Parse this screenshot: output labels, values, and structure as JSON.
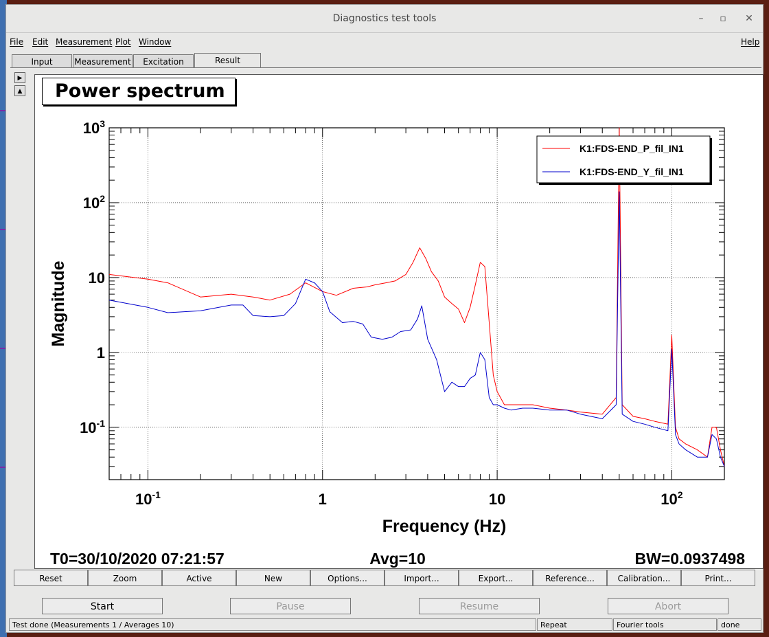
{
  "window": {
    "title": "Diagnostics test tools"
  },
  "menu": [
    {
      "label": "File"
    },
    {
      "label": "Edit"
    },
    {
      "label": "Measurement"
    },
    {
      "label": "Plot"
    },
    {
      "label": "Window"
    },
    {
      "label": "Help"
    }
  ],
  "tabs": [
    {
      "label": "Input"
    },
    {
      "label": "Measurement"
    },
    {
      "label": "Excitation"
    },
    {
      "label": "Result",
      "active": true
    }
  ],
  "plot": {
    "title": "Power spectrum",
    "info": {
      "t0": "T0=30/10/2020 07:21:57",
      "avg": "Avg=10",
      "bw": "BW=0.0937498"
    }
  },
  "chart_data": {
    "type": "line",
    "xlabel": "Frequency (Hz)",
    "ylabel": "Magnitude",
    "x_scale": "log",
    "y_scale": "log",
    "xlim": [
      0.06,
      200
    ],
    "ylim": [
      0.02,
      1000
    ],
    "x_ticks": [
      {
        "value": 0.1,
        "base": "10",
        "exp": "-1"
      },
      {
        "value": 1,
        "label": "1"
      },
      {
        "value": 10,
        "label": "10"
      },
      {
        "value": 100,
        "base": "10",
        "exp": "2"
      }
    ],
    "y_ticks": [
      {
        "value": 1000,
        "base": "10",
        "exp": "3"
      },
      {
        "value": 100,
        "base": "10",
        "exp": "2"
      },
      {
        "value": 10,
        "label": "10"
      },
      {
        "value": 1,
        "label": "1"
      },
      {
        "value": 0.1,
        "base": "10",
        "exp": "-1"
      }
    ],
    "grid": true,
    "legend_position": "top-right",
    "series": [
      {
        "name": "K1:FDS-END_P_fil_IN1",
        "color": "#ff0000",
        "x": [
          0.06,
          0.1,
          0.13,
          0.2,
          0.3,
          0.4,
          0.5,
          0.65,
          0.8,
          1.0,
          1.2,
          1.5,
          1.8,
          2.0,
          2.3,
          2.6,
          3.0,
          3.3,
          3.6,
          3.9,
          4.2,
          4.6,
          5.0,
          5.5,
          6.0,
          6.5,
          7.0,
          7.5,
          8.0,
          8.5,
          9.0,
          9.5,
          10,
          11,
          12,
          14,
          16,
          20,
          25,
          30,
          40,
          48,
          50,
          52,
          60,
          70,
          80,
          95,
          100,
          105,
          110,
          120,
          140,
          160,
          170,
          180,
          190,
          200
        ],
        "y": [
          11,
          9.5,
          8.5,
          5.5,
          6,
          5.5,
          5,
          6,
          8.5,
          6.5,
          5.8,
          7.2,
          7.5,
          8,
          8.5,
          9,
          11,
          16,
          25,
          18,
          12,
          9,
          5.5,
          4.5,
          3.8,
          2.5,
          4,
          8,
          16,
          14,
          2.5,
          0.5,
          0.3,
          0.2,
          0.2,
          0.2,
          0.2,
          0.18,
          0.17,
          0.16,
          0.15,
          0.25,
          1000,
          0.2,
          0.14,
          0.13,
          0.12,
          0.11,
          1.7,
          0.1,
          0.07,
          0.06,
          0.05,
          0.04,
          0.1,
          0.1,
          0.05,
          0.03
        ]
      },
      {
        "name": "K1:FDS-END_Y_fil_IN1",
        "color": "#0000cc",
        "x": [
          0.06,
          0.1,
          0.13,
          0.2,
          0.3,
          0.35,
          0.4,
          0.5,
          0.6,
          0.7,
          0.8,
          0.9,
          1.0,
          1.1,
          1.3,
          1.5,
          1.7,
          1.9,
          2.2,
          2.5,
          2.8,
          3.2,
          3.5,
          3.7,
          4.0,
          4.5,
          5.0,
          5.5,
          6.0,
          6.5,
          7.0,
          7.5,
          8.0,
          8.5,
          9.0,
          9.5,
          10,
          11,
          12,
          14,
          16,
          20,
          25,
          30,
          40,
          48,
          50,
          52,
          60,
          70,
          80,
          95,
          100,
          105,
          110,
          120,
          140,
          160,
          170,
          180,
          190,
          200
        ],
        "y": [
          5,
          4,
          3.4,
          3.6,
          4.3,
          4.3,
          3.1,
          3,
          3.1,
          4.5,
          9.5,
          8.5,
          6.5,
          3.5,
          2.5,
          2.6,
          2.4,
          1.6,
          1.5,
          1.6,
          1.9,
          2,
          2.8,
          4.2,
          1.5,
          0.8,
          0.3,
          0.4,
          0.35,
          0.35,
          0.45,
          0.5,
          1.0,
          0.8,
          0.25,
          0.2,
          0.2,
          0.18,
          0.17,
          0.18,
          0.18,
          0.17,
          0.17,
          0.15,
          0.13,
          0.2,
          140,
          0.15,
          0.12,
          0.11,
          0.1,
          0.09,
          1.1,
          0.08,
          0.06,
          0.05,
          0.04,
          0.04,
          0.08,
          0.07,
          0.04,
          0.03
        ]
      }
    ]
  },
  "buttons": [
    {
      "label": "Reset"
    },
    {
      "label": "Zoom"
    },
    {
      "label": "Active"
    },
    {
      "label": "New"
    },
    {
      "label": "Options..."
    },
    {
      "label": "Import..."
    },
    {
      "label": "Export..."
    },
    {
      "label": "Reference..."
    },
    {
      "label": "Calibration..."
    },
    {
      "label": "Print..."
    }
  ],
  "controls": {
    "start": "Start",
    "pause": "Pause",
    "resume": "Resume",
    "abort": "Abort"
  },
  "status": {
    "message": "Test done (Measurements 1 / Averages 10)",
    "mode": "Repeat",
    "tool": "Fourier tools",
    "state": "done"
  }
}
